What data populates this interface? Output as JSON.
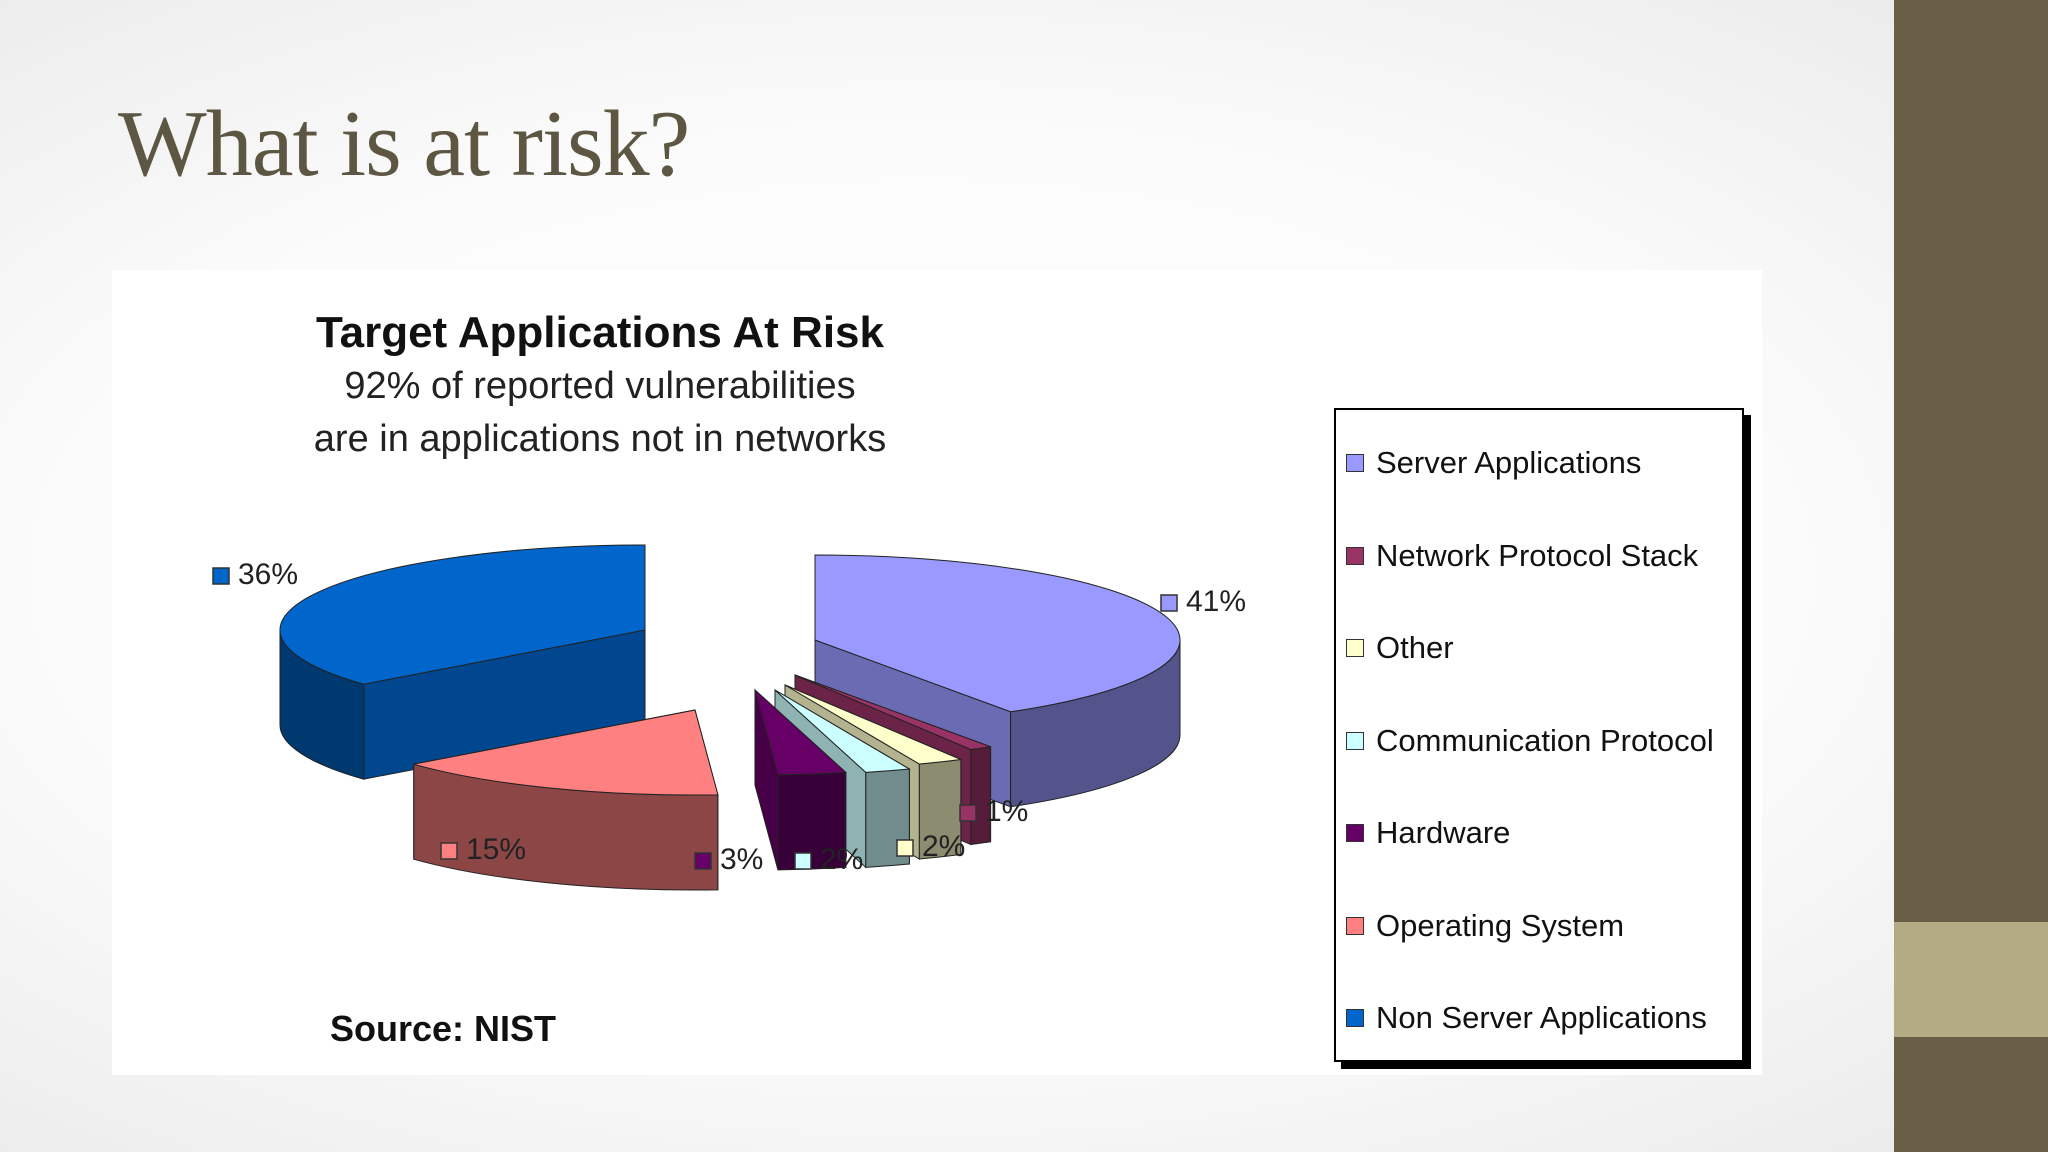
{
  "slide": {
    "title": "What is at risk?"
  },
  "chart_data": {
    "type": "pie",
    "title": "Target Applications At Risk",
    "subtitle": [
      "92% of reported vulnerabilities",
      "are in applications not in networks"
    ],
    "source": "Source: NIST",
    "slices": [
      {
        "name": "Server Applications",
        "value": 41,
        "label": "41%",
        "color": "#9999ff"
      },
      {
        "name": "Network Protocol Stack",
        "value": 1,
        "label": "1%",
        "color": "#993366"
      },
      {
        "name": "Other",
        "value": 2,
        "label": "2%",
        "color": "#ffffcc"
      },
      {
        "name": "Communication Protocol",
        "value": 2,
        "label": "2%",
        "color": "#ccffff"
      },
      {
        "name": "Hardware",
        "value": 3,
        "label": "3%",
        "color": "#660066"
      },
      {
        "name": "Operating System",
        "value": 15,
        "label": "15%",
        "color": "#ff8080"
      },
      {
        "name": "Non Server Applications",
        "value": 36,
        "label": "36%",
        "color": "#0066cc"
      }
    ],
    "legend_position": "right"
  },
  "theme": {
    "sidebar": "#6b5e47",
    "accent": "#b3ab84",
    "title_color": "#5c5642"
  }
}
